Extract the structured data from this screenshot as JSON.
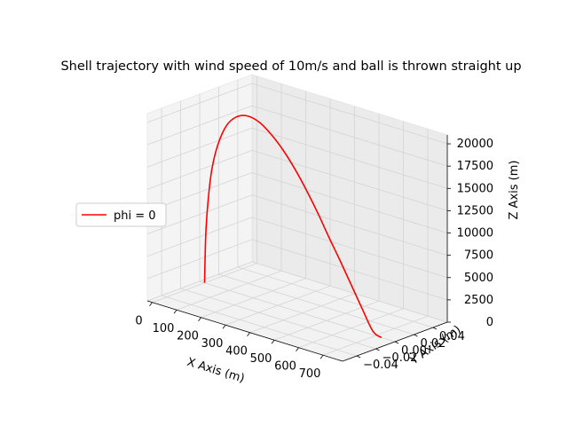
{
  "chart_data": {
    "type": "line",
    "projection": "3d",
    "title": "Shell trajectory with wind speed of 10m/s and ball is thrown straight up",
    "xlabel": "X Axis (m)",
    "ylabel": "Y Axis (m)",
    "zlabel": "Z Axis (m)",
    "xlim": [
      -20,
      780
    ],
    "ylim": [
      -0.055,
      0.055
    ],
    "zlim": [
      0,
      21000
    ],
    "x_ticks": [
      0,
      100,
      200,
      300,
      400,
      500,
      600,
      700
    ],
    "x_tick_labels": [
      "0",
      "100",
      "200",
      "300",
      "400",
      "500",
      "600",
      "700"
    ],
    "y_ticks": [
      -0.04,
      -0.02,
      0.0,
      0.02,
      0.04
    ],
    "y_tick_labels": [
      "−0.04",
      "−0.02",
      "0.00",
      "0.02",
      "0.04"
    ],
    "z_ticks": [
      0,
      2500,
      5000,
      7500,
      10000,
      12500,
      15000,
      17500,
      20000
    ],
    "z_tick_labels": [
      "0",
      "2500",
      "5000",
      "7500",
      "10000",
      "12500",
      "15000",
      "17500",
      "20000"
    ],
    "grid": true,
    "legend_position": "center-left",
    "series": [
      {
        "name": "phi = 0",
        "color": "#ff0000",
        "x": [
          0,
          5,
          15,
          30,
          55,
          90,
          130,
          175,
          225,
          275,
          325,
          375,
          420,
          465,
          510,
          555,
          600,
          645,
          690,
          725
        ],
        "y": [
          0,
          0,
          0,
          0,
          0,
          0,
          0,
          0,
          0,
          0,
          0,
          0,
          0,
          0,
          0,
          0,
          0,
          0,
          0,
          0
        ],
        "z": [
          0,
          5500,
          9500,
          13000,
          16000,
          18400,
          19700,
          20200,
          19900,
          18900,
          17500,
          15700,
          13800,
          11700,
          9400,
          7200,
          4900,
          2600,
          400,
          0
        ]
      }
    ]
  }
}
